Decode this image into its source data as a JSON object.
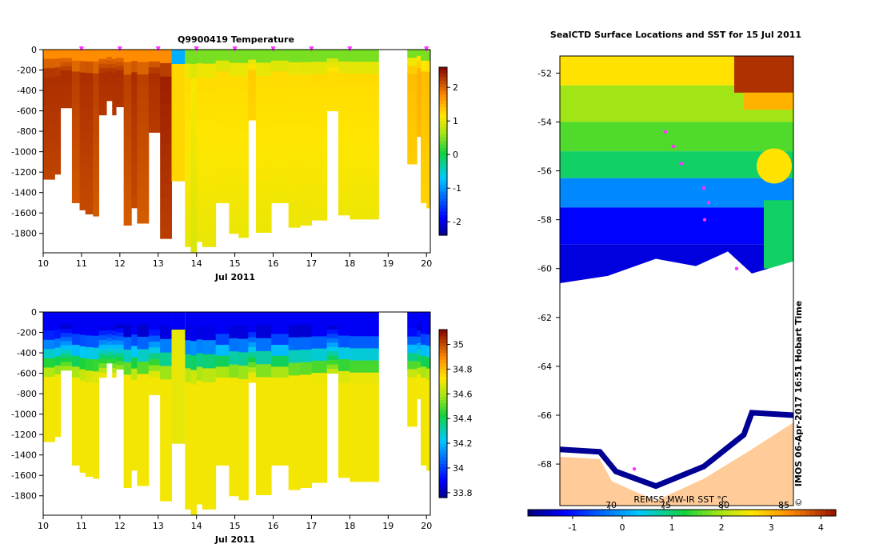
{
  "chart_data": [
    {
      "type": "heatmap",
      "id": "temperature",
      "title": "Q9900419  Temperature",
      "xlabel": "Jul 2011",
      "xlim": [
        10,
        20.1
      ],
      "xticks": [
        10,
        11,
        12,
        13,
        14,
        15,
        16,
        17,
        18,
        19,
        20
      ],
      "ylim": [
        -1990,
        0
      ],
      "yticks": [
        0,
        -200,
        -400,
        -600,
        -800,
        -1000,
        -1200,
        -1400,
        -1600,
        -1800
      ],
      "colorbar": {
        "min": -2.4,
        "max": 2.6,
        "ticks": [
          -2,
          -1,
          0,
          1,
          2
        ]
      },
      "profile_markers": [
        11,
        12,
        13,
        14,
        15,
        16,
        17,
        18,
        20
      ],
      "profiles": [
        {
          "t0": 10.0,
          "t1": 10.3,
          "maxdepth": -1270,
          "value": 2.4
        },
        {
          "t0": 10.3,
          "t1": 10.45,
          "maxdepth": -1220,
          "value": 2.4
        },
        {
          "t0": 10.45,
          "t1": 10.75,
          "maxdepth": -570,
          "value": 2.4
        },
        {
          "t0": 10.75,
          "t1": 10.95,
          "maxdepth": -1500,
          "value": 2.3
        },
        {
          "t0": 10.95,
          "t1": 11.1,
          "maxdepth": -1570,
          "value": 2.4
        },
        {
          "t0": 11.1,
          "t1": 11.3,
          "maxdepth": -1610,
          "value": 2.4
        },
        {
          "t0": 11.3,
          "t1": 11.45,
          "maxdepth": -1630,
          "value": 2.3
        },
        {
          "t0": 11.45,
          "t1": 11.65,
          "maxdepth": -640,
          "value": 2.4
        },
        {
          "t0": 11.65,
          "t1": 11.8,
          "maxdepth": -500,
          "value": 2.4
        },
        {
          "t0": 11.8,
          "t1": 11.9,
          "maxdepth": -640,
          "value": 2.4
        },
        {
          "t0": 11.9,
          "t1": 12.1,
          "maxdepth": -560,
          "value": 2.4
        },
        {
          "t0": 12.1,
          "t1": 12.3,
          "maxdepth": -1720,
          "value": 2.3
        },
        {
          "t0": 12.3,
          "t1": 12.45,
          "maxdepth": -1550,
          "value": 2.4
        },
        {
          "t0": 12.45,
          "t1": 12.75,
          "maxdepth": -1700,
          "value": 2.3
        },
        {
          "t0": 12.75,
          "t1": 13.05,
          "maxdepth": -810,
          "value": 2.4
        },
        {
          "t0": 13.05,
          "t1": 13.35,
          "maxdepth": -1850,
          "value": 2.5
        },
        {
          "t0": 13.7,
          "t1": 13.85,
          "maxdepth": -1930,
          "value": 1.3
        },
        {
          "t0": 13.85,
          "t1": 14.0,
          "maxdepth": -1990,
          "value": 1.2
        },
        {
          "t0": 14.0,
          "t1": 14.15,
          "maxdepth": -1880,
          "value": 1.3
        },
        {
          "t0": 14.15,
          "t1": 14.5,
          "maxdepth": -1930,
          "value": 1.3
        },
        {
          "t0": 14.5,
          "t1": 14.85,
          "maxdepth": -1500,
          "value": 1.3
        },
        {
          "t0": 14.85,
          "t1": 15.1,
          "maxdepth": -1800,
          "value": 1.3
        },
        {
          "t0": 15.1,
          "t1": 15.35,
          "maxdepth": -1840,
          "value": 1.3
        },
        {
          "t0": 15.35,
          "t1": 15.55,
          "maxdepth": -690,
          "value": 1.4
        },
        {
          "t0": 15.55,
          "t1": 15.95,
          "maxdepth": -1790,
          "value": 1.3
        },
        {
          "t0": 15.95,
          "t1": 16.4,
          "maxdepth": -1500,
          "value": 1.3
        },
        {
          "t0": 16.4,
          "t1": 16.7,
          "maxdepth": -1740,
          "value": 1.3
        },
        {
          "t0": 16.7,
          "t1": 17.0,
          "maxdepth": -1720,
          "value": 1.3
        },
        {
          "t0": 17.0,
          "t1": 17.4,
          "maxdepth": -1670,
          "value": 1.3
        },
        {
          "t0": 17.4,
          "t1": 17.7,
          "maxdepth": -600,
          "value": 1.3
        },
        {
          "t0": 17.7,
          "t1": 18.0,
          "maxdepth": -1620,
          "value": 1.3
        },
        {
          "t0": 18.0,
          "t1": 18.75,
          "maxdepth": -1660,
          "value": 1.3
        },
        {
          "t0": 19.5,
          "t1": 19.75,
          "maxdepth": -1120,
          "value": 1.5
        },
        {
          "t0": 19.75,
          "t1": 19.85,
          "maxdepth": -850,
          "value": 1.6
        },
        {
          "t0": 19.85,
          "t1": 20.0,
          "maxdepth": -1500,
          "value": 1.5
        },
        {
          "t0": 20.0,
          "t1": 20.1,
          "maxdepth": -1550,
          "value": 1.5
        }
      ]
    },
    {
      "type": "heatmap",
      "id": "salinity",
      "title": "",
      "xlabel": "Jul 2011",
      "xlim": [
        10,
        20.1
      ],
      "xticks": [
        10,
        11,
        12,
        13,
        14,
        15,
        16,
        17,
        18,
        19,
        20
      ],
      "ylim": [
        -1990,
        0
      ],
      "yticks": [
        0,
        -200,
        -400,
        -600,
        -800,
        -1000,
        -1200,
        -1400,
        -1600,
        -1800
      ],
      "colorbar": {
        "min": 33.76,
        "max": 35.12,
        "ticks": [
          33.8,
          34,
          34.2,
          34.4,
          34.6,
          34.8,
          35
        ]
      },
      "surface_value": 33.85,
      "deep_value": 34.72
    },
    {
      "type": "heatmap",
      "id": "sst-map",
      "title": "SealCTD Surface Locations and SST for 15 Jul 2011",
      "ylim": [
        -69.7,
        -51.3
      ],
      "yticks": [
        -52,
        -54,
        -56,
        -58,
        -60,
        -62,
        -64,
        -66,
        -68
      ],
      "colorbar": {
        "min": -1.9,
        "max": 4.3,
        "ticks": [
          -1,
          0,
          1,
          2,
          3,
          4
        ]
      },
      "overlay_tick_labels": [
        "70",
        "75",
        "80",
        "85"
      ],
      "sst_label": "REMSS MW-IR SST °C",
      "side_label": "IMOS 06-Apr-2017 16:51 Hobart Time",
      "copyright": "©"
    }
  ]
}
